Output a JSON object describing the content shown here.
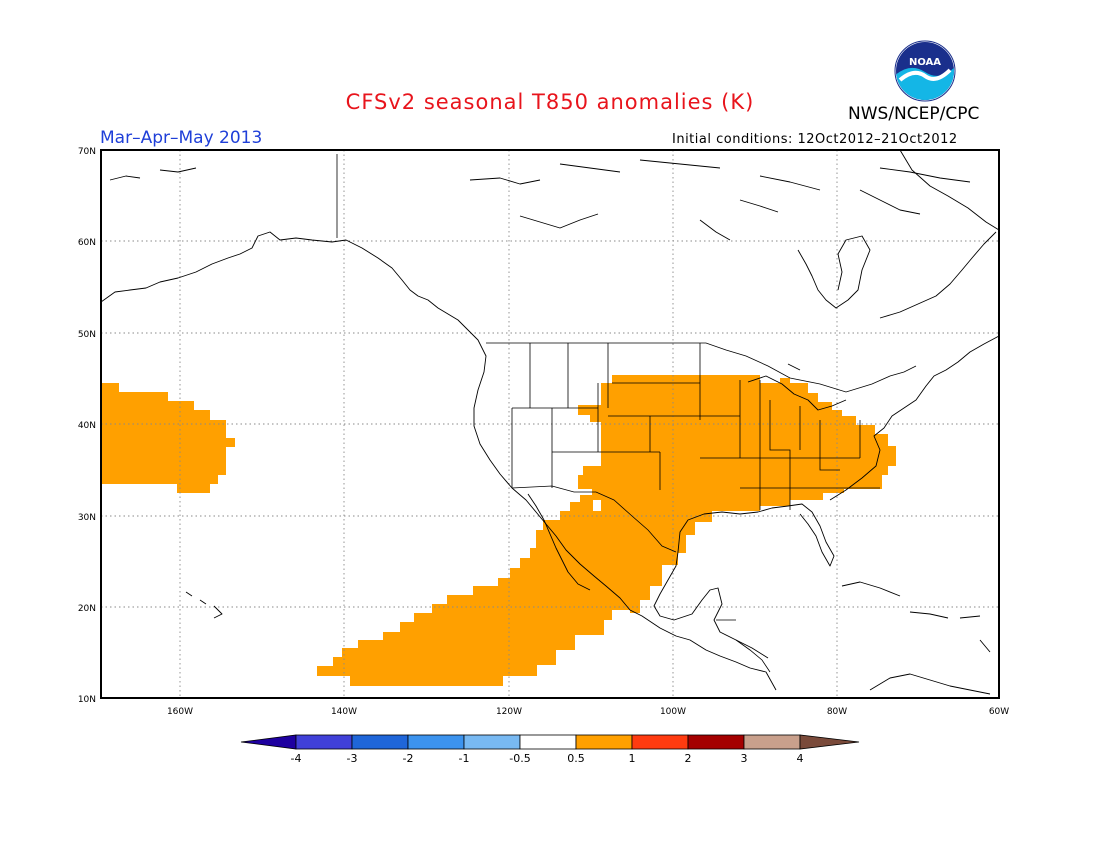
{
  "title": "CFSv2 seasonal T850 anomalies (K)",
  "season": "Mar–Apr–May 2013",
  "agency": "NWS/NCEP/CPC",
  "initial_conditions": "Initial conditions: 12Oct2012–21Oct2012",
  "logo": {
    "name": "noaa-logo",
    "text": "NOAA"
  },
  "map": {
    "lon_range": [
      -173,
      -60
    ],
    "lat_range": [
      10,
      70
    ],
    "lat_ticks": [
      "10N",
      "20N",
      "30N",
      "40N",
      "50N",
      "60N",
      "70N"
    ],
    "lon_ticks": [
      "160W",
      "140W",
      "120W",
      "100W",
      "80W",
      "60W"
    ],
    "grid": "dotted",
    "anomaly_regions": [
      {
        "name": "central-north-pacific",
        "category": "0.5 to 1"
      },
      {
        "name": "central-and-eastern-us",
        "category": "0.5 to 1"
      },
      {
        "name": "mexico-and-eastern-tropical-pacific",
        "category": "0.5 to 1"
      }
    ]
  },
  "colorbar": {
    "labels": [
      "-4",
      "-3",
      "-2",
      "-1",
      "-0.5",
      "0.5",
      "1",
      "2",
      "3",
      "4"
    ],
    "colors": [
      "#1e00a0",
      "#4040d8",
      "#1f66d9",
      "#3c93ee",
      "#78b9f2",
      "#ffffff",
      "#ffa000",
      "#ff3b10",
      "#a40000",
      "#c9a08c",
      "#7a4a3a"
    ]
  }
}
